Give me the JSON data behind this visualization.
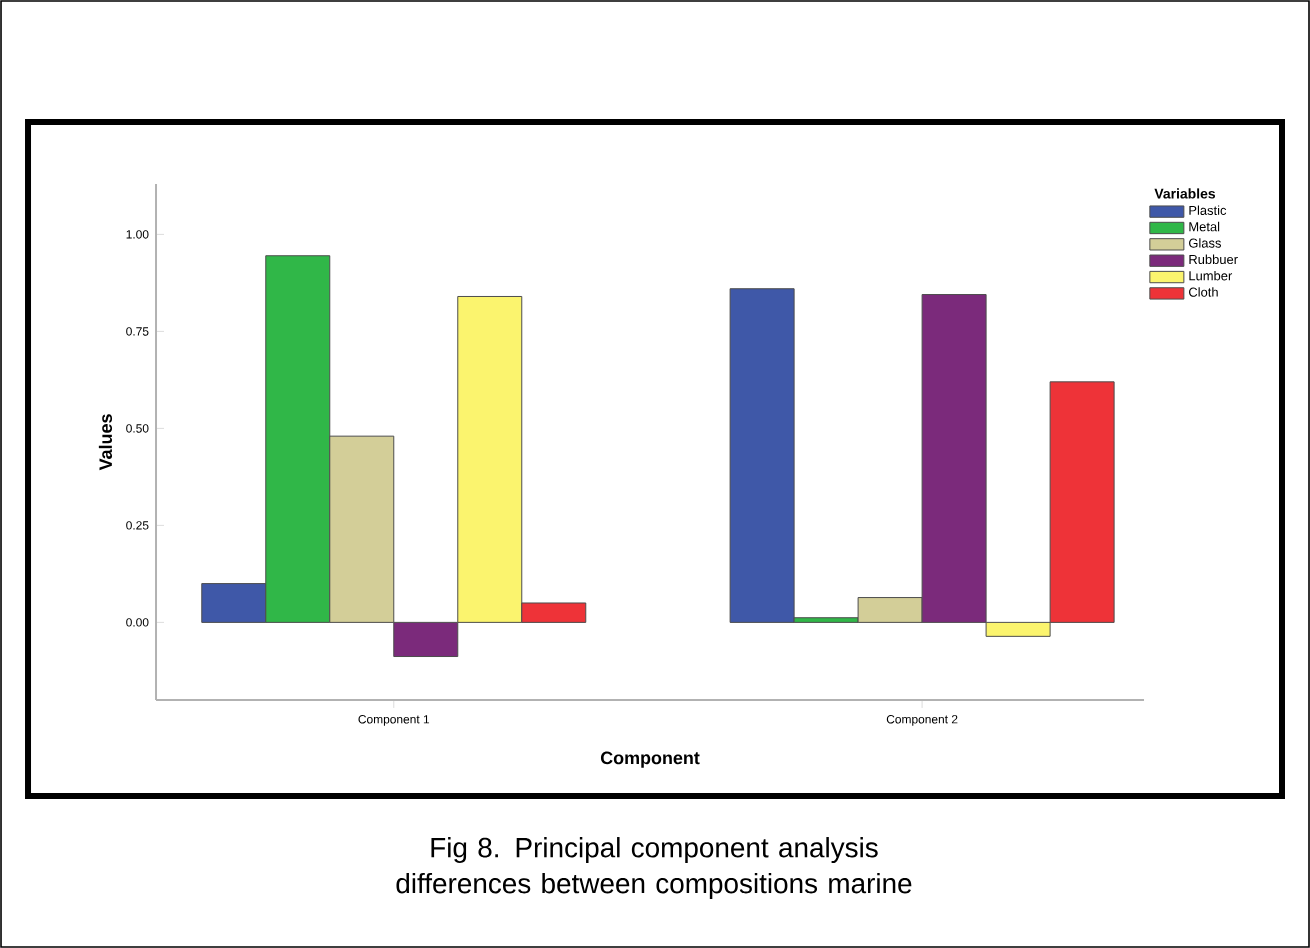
{
  "chart_data": {
    "type": "bar",
    "xlabel": "Component",
    "ylabel": "Values",
    "legend_title": "Variables",
    "categories": [
      "Component 1",
      "Component 2"
    ],
    "series": [
      {
        "name": "Plastic",
        "color": "#3f58a8",
        "values": [
          0.1,
          0.86
        ]
      },
      {
        "name": "Metal",
        "color": "#30b748",
        "values": [
          0.945,
          0.012
        ]
      },
      {
        "name": "Glass",
        "color": "#d3ce98",
        "values": [
          0.48,
          0.064
        ]
      },
      {
        "name": "Rubbuer",
        "color": "#7b2a7b",
        "values": [
          -0.088,
          0.845
        ]
      },
      {
        "name": "Lumber",
        "color": "#fbf46e",
        "values": [
          0.84,
          -0.036
        ]
      },
      {
        "name": "Cloth",
        "color": "#ee3338",
        "values": [
          0.05,
          0.62
        ]
      }
    ],
    "ylim": [
      -0.2,
      1.13
    ],
    "yticks": [
      {
        "value": 0,
        "label": "0.00"
      },
      {
        "value": 0.25,
        "label": "0.25"
      },
      {
        "value": 0.5,
        "label": "0.50"
      },
      {
        "value": 0.75,
        "label": "0.75"
      },
      {
        "value": 1,
        "label": "1.00"
      }
    ],
    "grid": false,
    "legend": "top right",
    "annotations": [
      "Fig 8.  Principal component analysis differences between compositions marine"
    ]
  }
}
